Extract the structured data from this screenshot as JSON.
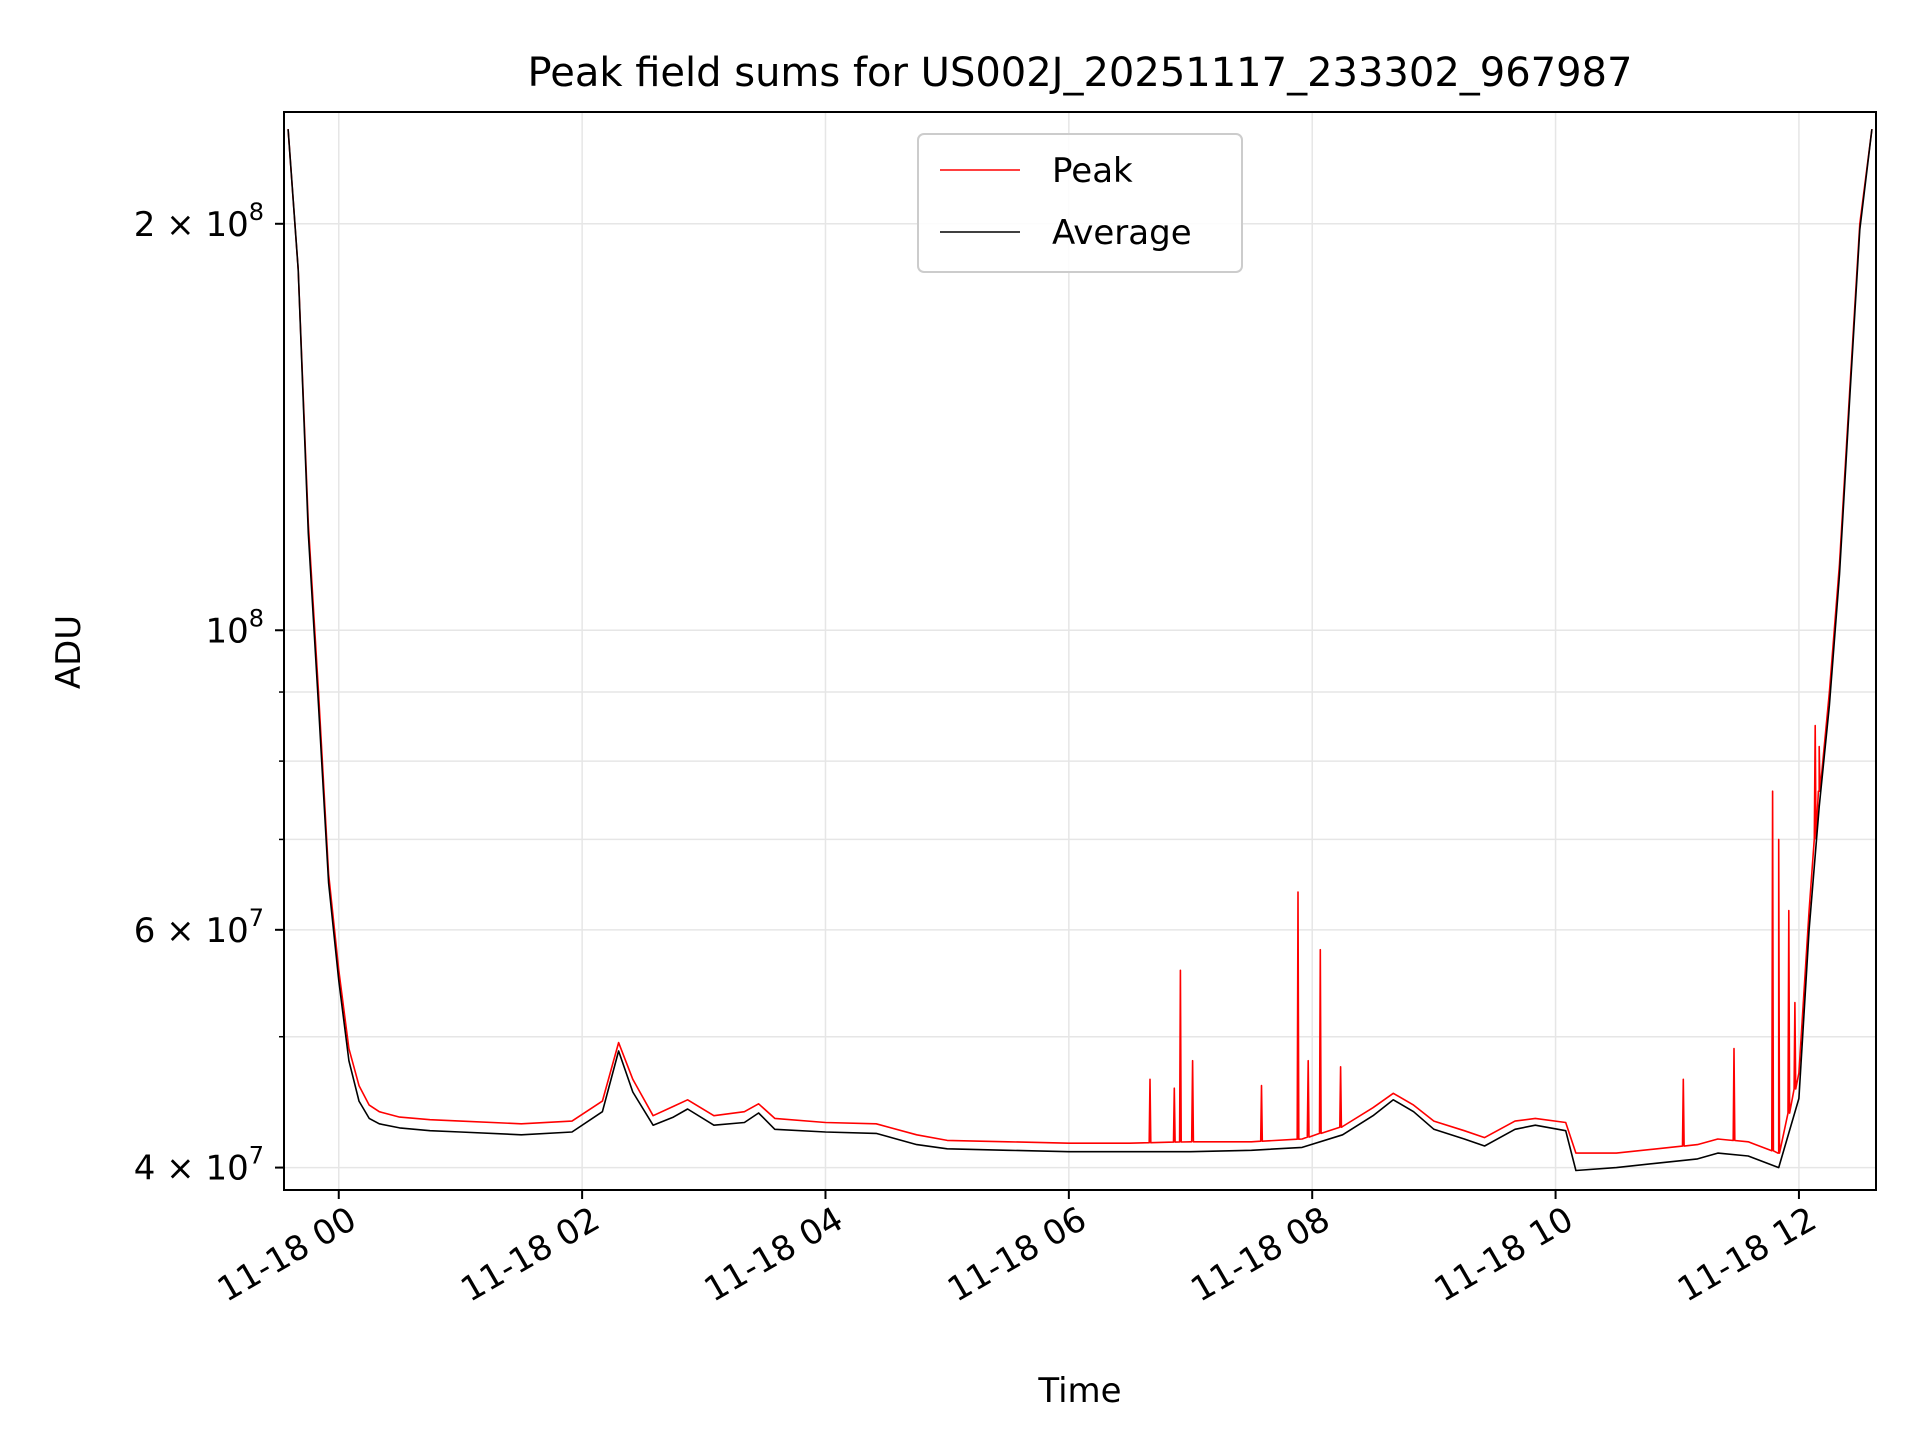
{
  "chart_data": {
    "type": "line",
    "title": "Peak field sums for US002J_20251117_233302_967987",
    "xlabel": "Time",
    "ylabel": "ADU",
    "yscale": "log",
    "grid": true,
    "legend_position": "top-center",
    "xlim": [
      "11-17 23:33",
      "11-18 12:38"
    ],
    "ylim": [
      38500000,
      242000000
    ],
    "x_ticks": [
      "11-18 00",
      "11-18 02",
      "11-18 04",
      "11-18 06",
      "11-18 08",
      "11-18 10",
      "11-18 12"
    ],
    "y_ticks": [
      {
        "value": 200000000,
        "label_base": "2 × 10",
        "label_exp": "8"
      },
      {
        "value": 100000000,
        "label_base": "10",
        "label_exp": "8"
      },
      {
        "value": 60000000,
        "label_base": "6 × 10",
        "label_exp": "7"
      },
      {
        "value": 40000000,
        "label_base": "4 × 10",
        "label_exp": "7"
      }
    ],
    "colors": {
      "peak": "#ff0000",
      "average": "#000000",
      "grid": "#e6e6e6"
    },
    "series": [
      {
        "name": "Peak",
        "x": [
          "11-17 23:35",
          "11-17 23:40",
          "11-17 23:45",
          "11-17 23:50",
          "11-17 23:55",
          "11-18 00:00",
          "11-18 00:05",
          "11-18 00:10",
          "11-18 00:15",
          "11-18 00:20",
          "11-18 00:30",
          "11-18 00:45",
          "11-18 01:00",
          "11-18 01:30",
          "11-18 01:55",
          "11-18 02:10",
          "11-18 02:18",
          "11-18 02:25",
          "11-18 02:35",
          "11-18 02:45",
          "11-18 02:52",
          "11-18 03:05",
          "11-18 03:20",
          "11-18 03:27",
          "11-18 03:35",
          "11-18 04:00",
          "11-18 04:25",
          "11-18 04:45",
          "11-18 05:00",
          "11-18 05:30",
          "11-18 06:00",
          "11-18 06:30",
          "11-18 07:00",
          "11-18 07:30",
          "11-18 07:55",
          "11-18 08:15",
          "11-18 08:30",
          "11-18 08:40",
          "11-18 08:50",
          "11-18 09:00",
          "11-18 09:15",
          "11-18 09:25",
          "11-18 09:40",
          "11-18 09:50",
          "11-18 10:05",
          "11-18 10:10",
          "11-18 10:30",
          "11-18 10:50",
          "11-18 11:10",
          "11-18 11:20",
          "11-18 11:35",
          "11-18 11:50",
          "11-18 12:00",
          "11-18 12:05",
          "11-18 12:10",
          "11-18 12:15",
          "11-18 12:20",
          "11-18 12:25",
          "11-18 12:30",
          "11-18 12:36"
        ],
        "y": [
          235000000,
          185000000,
          120000000,
          90000000,
          66000000,
          56000000,
          49000000,
          46000000,
          44500000,
          44000000,
          43600000,
          43400000,
          43300000,
          43100000,
          43300000,
          44800000,
          49500000,
          46500000,
          43700000,
          44400000,
          44900000,
          43700000,
          44000000,
          44600000,
          43500000,
          43200000,
          43100000,
          42300000,
          41900000,
          41800000,
          41700000,
          41700000,
          41800000,
          41800000,
          42000000,
          42900000,
          44300000,
          45400000,
          44500000,
          43300000,
          42600000,
          42100000,
          43300000,
          43500000,
          43200000,
          41000000,
          41000000,
          41300000,
          41600000,
          42000000,
          41800000,
          41000000,
          47000000,
          62000000,
          76000000,
          90000000,
          112000000,
          150000000,
          200000000,
          235000000
        ],
        "spikes": [
          {
            "x": "11-18 06:40",
            "y": 46500000
          },
          {
            "x": "11-18 06:52",
            "y": 45800000
          },
          {
            "x": "11-18 06:55",
            "y": 56000000
          },
          {
            "x": "11-18 07:01",
            "y": 48000000
          },
          {
            "x": "11-18 07:35",
            "y": 46000000
          },
          {
            "x": "11-18 07:53",
            "y": 64000000
          },
          {
            "x": "11-18 07:58",
            "y": 48000000
          },
          {
            "x": "11-18 08:04",
            "y": 58000000
          },
          {
            "x": "11-18 08:14",
            "y": 47500000
          },
          {
            "x": "11-18 11:03",
            "y": 46500000
          },
          {
            "x": "11-18 11:28",
            "y": 49000000
          },
          {
            "x": "11-18 11:47",
            "y": 76000000
          },
          {
            "x": "11-18 11:50",
            "y": 70000000
          },
          {
            "x": "11-18 11:55",
            "y": 62000000
          },
          {
            "x": "11-18 11:58",
            "y": 53000000
          },
          {
            "x": "11-18 12:08",
            "y": 85000000
          },
          {
            "x": "11-18 12:10",
            "y": 82000000
          }
        ]
      },
      {
        "name": "Average",
        "x": [
          "11-17 23:35",
          "11-17 23:40",
          "11-17 23:45",
          "11-17 23:50",
          "11-17 23:55",
          "11-18 00:00",
          "11-18 00:05",
          "11-18 00:10",
          "11-18 00:15",
          "11-18 00:20",
          "11-18 00:30",
          "11-18 00:45",
          "11-18 01:00",
          "11-18 01:30",
          "11-18 01:55",
          "11-18 02:10",
          "11-18 02:18",
          "11-18 02:25",
          "11-18 02:35",
          "11-18 02:45",
          "11-18 02:52",
          "11-18 03:05",
          "11-18 03:20",
          "11-18 03:27",
          "11-18 03:35",
          "11-18 04:00",
          "11-18 04:25",
          "11-18 04:45",
          "11-18 05:00",
          "11-18 05:30",
          "11-18 06:00",
          "11-18 06:30",
          "11-18 07:00",
          "11-18 07:30",
          "11-18 07:55",
          "11-18 08:15",
          "11-18 08:30",
          "11-18 08:40",
          "11-18 08:50",
          "11-18 09:00",
          "11-18 09:15",
          "11-18 09:25",
          "11-18 09:40",
          "11-18 09:50",
          "11-18 10:05",
          "11-18 10:10",
          "11-18 10:30",
          "11-18 10:50",
          "11-18 11:10",
          "11-18 11:20",
          "11-18 11:35",
          "11-18 11:50",
          "11-18 12:00",
          "11-18 12:05",
          "11-18 12:10",
          "11-18 12:15",
          "11-18 12:20",
          "11-18 12:25",
          "11-18 12:30",
          "11-18 12:36"
        ],
        "y": [
          235000000,
          185000000,
          118000000,
          88000000,
          65000000,
          55000000,
          48000000,
          44800000,
          43500000,
          43100000,
          42800000,
          42600000,
          42500000,
          42300000,
          42500000,
          44000000,
          48800000,
          45500000,
          43000000,
          43600000,
          44200000,
          43000000,
          43200000,
          43900000,
          42700000,
          42500000,
          42400000,
          41600000,
          41300000,
          41200000,
          41100000,
          41100000,
          41100000,
          41200000,
          41400000,
          42300000,
          43700000,
          44900000,
          44000000,
          42700000,
          42000000,
          41500000,
          42700000,
          43000000,
          42600000,
          39800000,
          40000000,
          40300000,
          40600000,
          41000000,
          40800000,
          40000000,
          45000000,
          60000000,
          74000000,
          88000000,
          110000000,
          148000000,
          198000000,
          235000000
        ]
      }
    ]
  }
}
